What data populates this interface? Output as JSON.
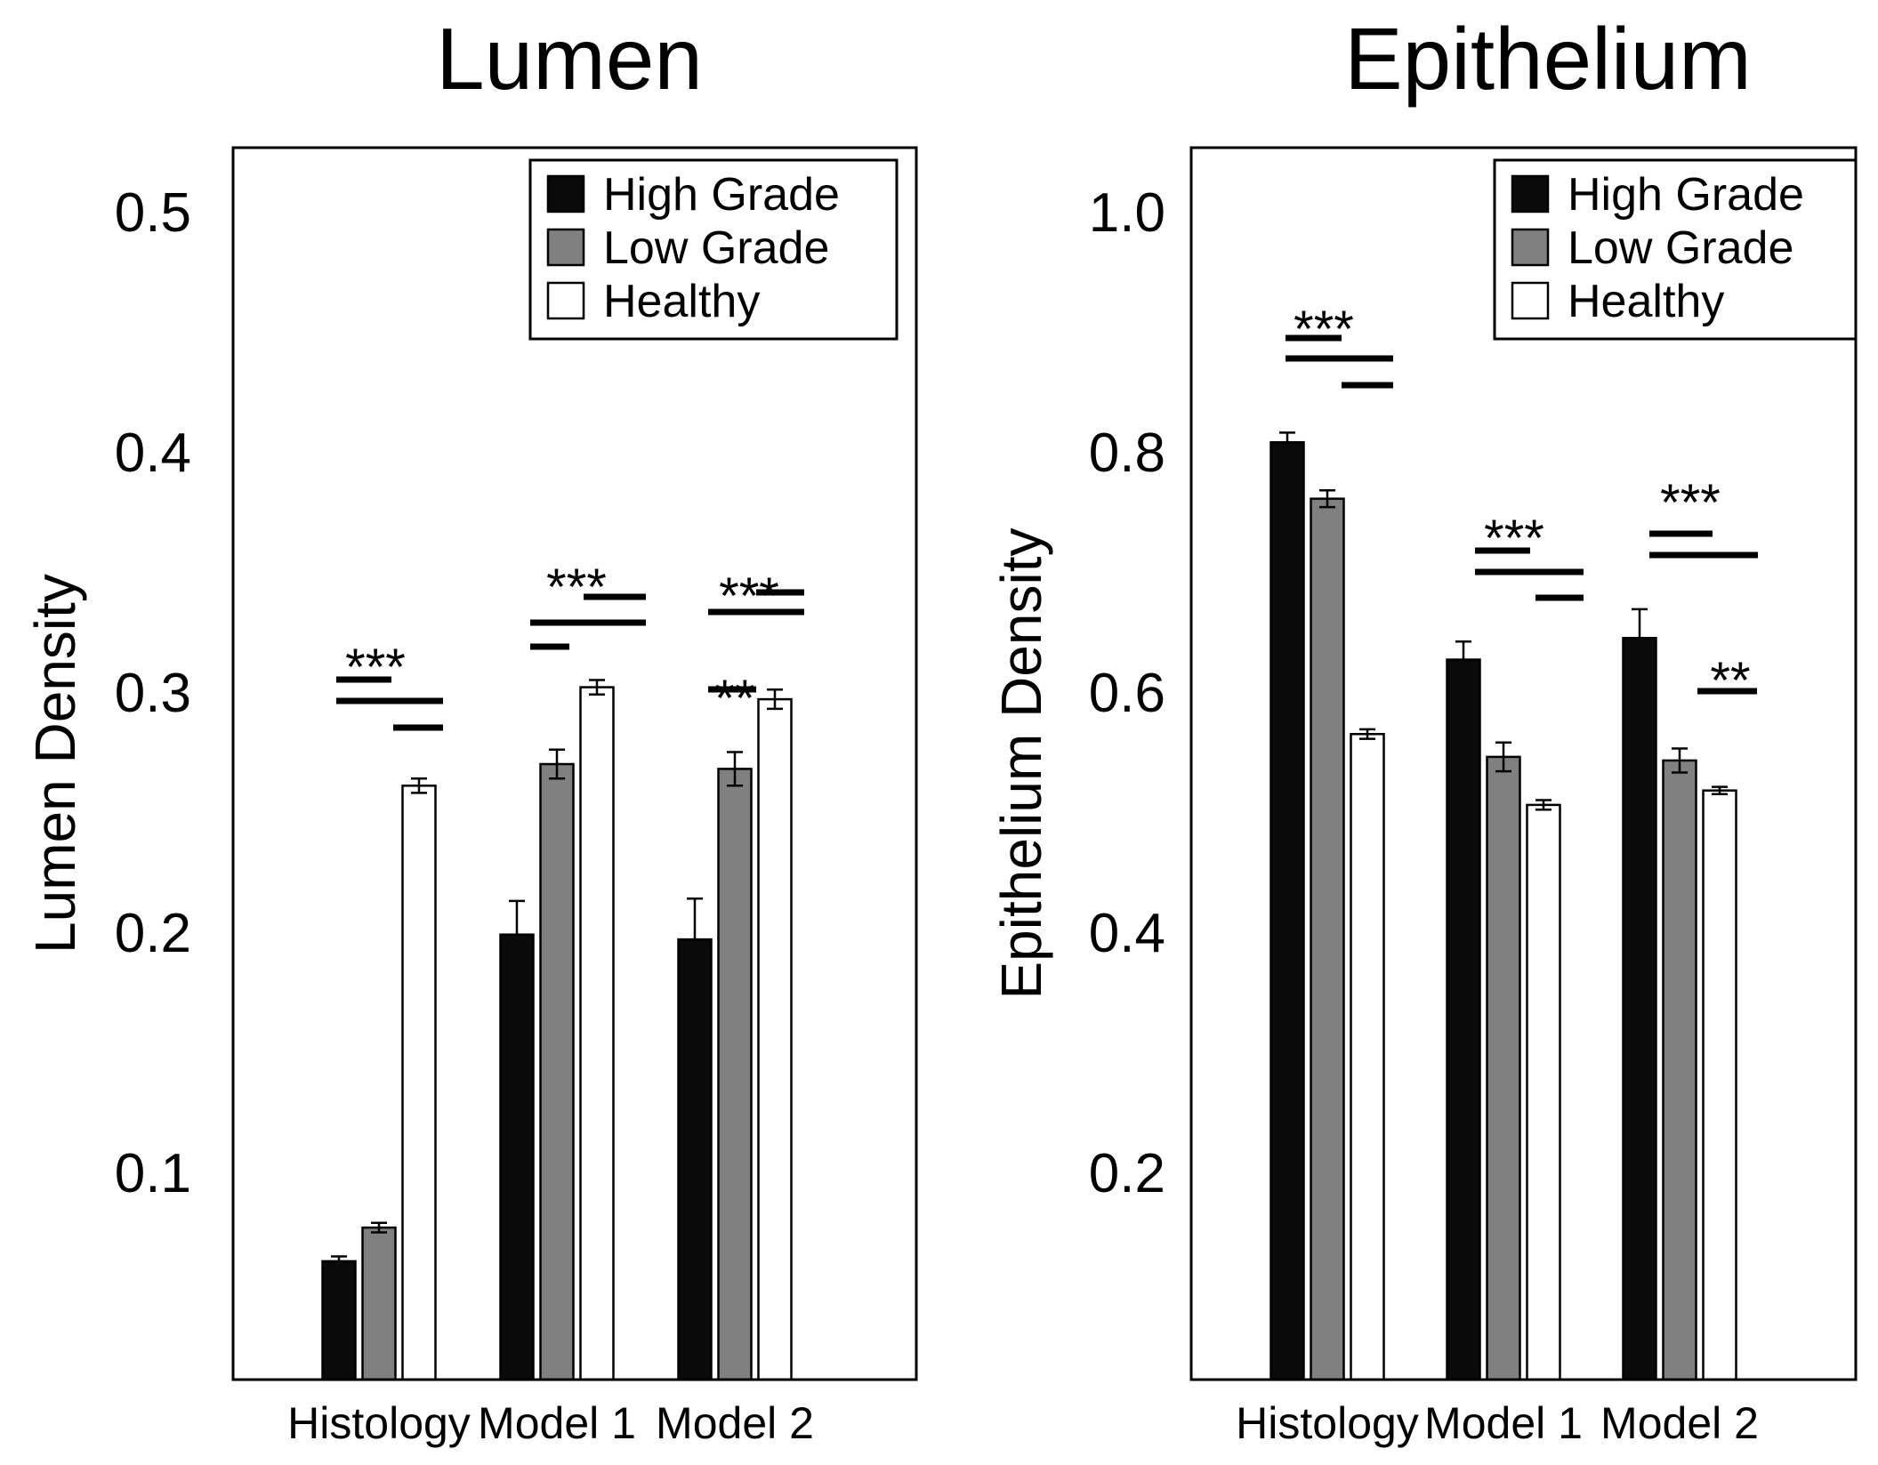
{
  "chart_data": [
    {
      "type": "bar",
      "title": "Lumen",
      "ylabel": "Lumen Density",
      "xlabel": "",
      "ylim": [
        0.02,
        0.5
      ],
      "yticks": [
        "0.1",
        "0.2",
        "0.3",
        "0.4",
        "0.5"
      ],
      "categories": [
        "Histology",
        "Model 1",
        "Model 2"
      ],
      "series": [
        {
          "name": "High Grade",
          "color": "#0a0a0a",
          "values": [
            0.063,
            0.199,
            0.197
          ],
          "errors": [
            0.002,
            0.014,
            0.017
          ]
        },
        {
          "name": "Low Grade",
          "color": "#808080",
          "values": [
            0.077,
            0.27,
            0.268
          ],
          "errors": [
            0.002,
            0.006,
            0.007
          ]
        },
        {
          "name": "Healthy",
          "color": "#ffffff",
          "values": [
            0.261,
            0.302,
            0.297
          ],
          "errors": [
            0.003,
            0.003,
            0.004
          ]
        }
      ],
      "legend": "top-right",
      "significance": [
        {
          "category": "Histology",
          "label": "***",
          "pairs": [
            [
              "High Grade",
              "Low Grade"
            ],
            [
              "High Grade",
              "Healthy"
            ],
            [
              "Low Grade",
              "Healthy"
            ]
          ]
        },
        {
          "category": "Model 1",
          "label": "***",
          "pairs": [
            [
              "High Grade",
              "Low Grade"
            ],
            [
              "High Grade",
              "Healthy"
            ],
            [
              "Low Grade",
              "Healthy"
            ]
          ]
        },
        {
          "category": "Model 2",
          "label": "***",
          "pairs": [
            [
              "High Grade",
              "Healthy"
            ],
            [
              "Low Grade",
              "Healthy"
            ]
          ]
        },
        {
          "category": "Model 2",
          "label": "**",
          "pairs": [
            [
              "High Grade",
              "Low Grade"
            ]
          ]
        }
      ]
    },
    {
      "type": "bar",
      "title": "Epithelium",
      "ylabel": "Epithelium Density",
      "xlabel": "",
      "ylim": [
        0.05,
        1.02
      ],
      "yticks": [
        "0.2",
        "0.4",
        "0.6",
        "0.8",
        "1.0"
      ],
      "categories": [
        "Histology",
        "Model 1",
        "Model 2"
      ],
      "series": [
        {
          "name": "High Grade",
          "color": "#0a0a0a",
          "values": [
            0.808,
            0.627,
            0.645
          ],
          "errors": [
            0.008,
            0.015,
            0.024
          ]
        },
        {
          "name": "Low Grade",
          "color": "#808080",
          "values": [
            0.761,
            0.546,
            0.543
          ],
          "errors": [
            0.007,
            0.012,
            0.01
          ]
        },
        {
          "name": "Healthy",
          "color": "#ffffff",
          "values": [
            0.565,
            0.506,
            0.518
          ],
          "errors": [
            0.004,
            0.004,
            0.003
          ]
        }
      ],
      "legend": "top-right",
      "significance": [
        {
          "category": "Histology",
          "label": "***",
          "pairs": [
            [
              "High Grade",
              "Low Grade"
            ],
            [
              "High Grade",
              "Healthy"
            ],
            [
              "Low Grade",
              "Healthy"
            ]
          ]
        },
        {
          "category": "Model 1",
          "label": "***",
          "pairs": [
            [
              "High Grade",
              "Low Grade"
            ],
            [
              "High Grade",
              "Healthy"
            ],
            [
              "Low Grade",
              "Healthy"
            ]
          ]
        },
        {
          "category": "Model 2",
          "label": "***",
          "pairs": [
            [
              "High Grade",
              "Low Grade"
            ],
            [
              "High Grade",
              "Healthy"
            ]
          ]
        },
        {
          "category": "Model 2",
          "label": "**",
          "pairs": [
            [
              "Low Grade",
              "Healthy"
            ]
          ]
        }
      ]
    }
  ]
}
